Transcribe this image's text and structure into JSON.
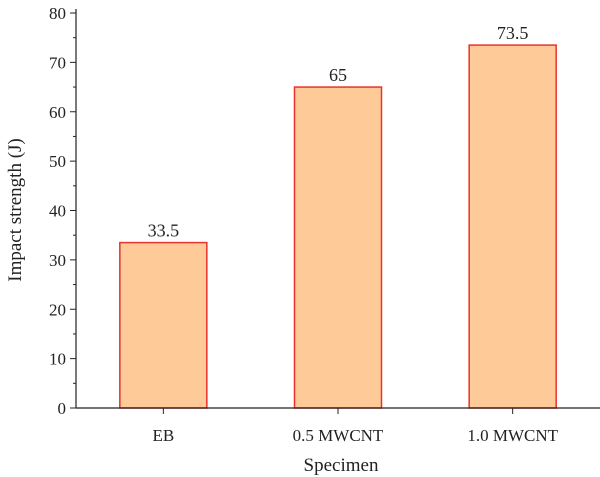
{
  "chart_data": {
    "type": "bar",
    "title": "",
    "xlabel": "Specimen",
    "ylabel": "Impact strength (J)",
    "categories": [
      "EB",
      "0.5 MWCNT",
      "1.0 MWCNT"
    ],
    "values": [
      33.5,
      65,
      73.5
    ],
    "data_labels": [
      "33.5",
      "65",
      "73.5"
    ],
    "ylim": [
      0,
      80
    ],
    "yticks": [
      0,
      10,
      20,
      30,
      40,
      50,
      60,
      70,
      80
    ],
    "grid": false,
    "legend": "none",
    "colors": {
      "bar_fill": "#fdca98",
      "bar_edge": "#e8322e",
      "axis": "#222222"
    }
  }
}
